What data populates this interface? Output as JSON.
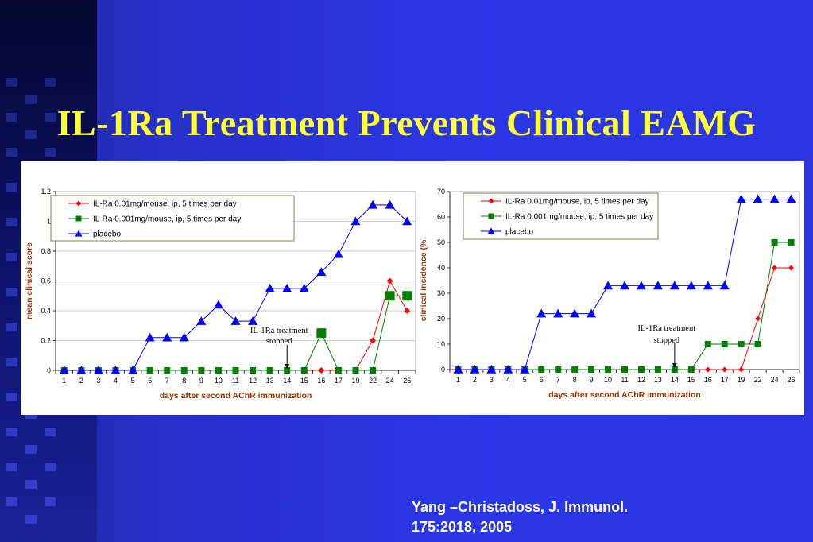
{
  "slide": {
    "title": "IL-1Ra Treatment Prevents Clinical EAMG",
    "citation_line1": "Yang –Christadoss, J. Immunol.",
    "citation_line2": "175:2018, 2005"
  },
  "colors": {
    "series_red": "#ff0000",
    "series_green": "#008000",
    "series_blue": "#0000ff",
    "axis_label": "#993300",
    "title": "#ffff33"
  },
  "chart_data": [
    {
      "type": "line",
      "xlabel": "days after second AChR immunization",
      "ylabel": "mean clinical score",
      "ylim": [
        0,
        1.2
      ],
      "yticks": [
        "0",
        "0.2",
        "0.4",
        "0.6",
        "0.8",
        "1",
        "1.2"
      ],
      "categories": [
        "1",
        "2",
        "3",
        "4",
        "5",
        "6",
        "7",
        "8",
        "9",
        "10",
        "11",
        "12",
        "13",
        "14",
        "15",
        "16",
        "17",
        "19",
        "22",
        "24",
        "26"
      ],
      "grid": true,
      "legend_position": "top-left",
      "annotation": {
        "line1": "IL-1Ra treatment",
        "line2": "stopped",
        "at_category": "14"
      },
      "series": [
        {
          "name": "IL-Ra 0.01mg/mouse, ip, 5 times per day",
          "marker": "diamond",
          "values": [
            0,
            0,
            0,
            0,
            0,
            0,
            0,
            0,
            0,
            0,
            0,
            0,
            0,
            0,
            0,
            0,
            0,
            0,
            0.2,
            0.6,
            0.4
          ]
        },
        {
          "name": "IL-Ra 0.001mg/mouse, ip, 5 times per day",
          "marker": "square",
          "values": [
            0,
            0,
            0,
            0,
            0,
            0,
            0,
            0,
            0,
            0,
            0,
            0,
            0,
            0,
            0,
            0.25,
            0,
            0,
            0,
            0.5,
            0.5
          ]
        },
        {
          "name": "placebo",
          "marker": "triangle",
          "values": [
            0,
            0,
            0,
            0,
            0,
            0.22,
            0.22,
            0.22,
            0.33,
            0.44,
            0.33,
            0.33,
            0.55,
            0.55,
            0.55,
            0.66,
            0.78,
            1.0,
            1.11,
            1.11,
            1.0
          ]
        }
      ]
    },
    {
      "type": "line",
      "xlabel": "days after second AChR immunization",
      "ylabel": "clinical incidence (%",
      "ylim": [
        0,
        70
      ],
      "yticks": [
        "0",
        "10",
        "20",
        "30",
        "40",
        "50",
        "60",
        "70"
      ],
      "categories": [
        "1",
        "2",
        "3",
        "4",
        "5",
        "6",
        "7",
        "8",
        "9",
        "10",
        "11",
        "12",
        "13",
        "14",
        "15",
        "16",
        "17",
        "19",
        "22",
        "24",
        "26"
      ],
      "grid": false,
      "legend_position": "top-left",
      "annotation": {
        "line1": "IL-1Ra treatment",
        "line2": "stopped",
        "at_category": "14"
      },
      "series": [
        {
          "name": "IL-Ra 0.01mg/mouse, ip, 5 times per day",
          "marker": "diamond",
          "values": [
            0,
            0,
            0,
            0,
            0,
            0,
            0,
            0,
            0,
            0,
            0,
            0,
            0,
            0,
            0,
            0,
            0,
            0,
            20,
            40,
            40
          ]
        },
        {
          "name": "IL-Ra 0.001mg/mouse, ip, 5 times per day",
          "marker": "square",
          "values": [
            0,
            0,
            0,
            0,
            0,
            0,
            0,
            0,
            0,
            0,
            0,
            0,
            0,
            0,
            0,
            10,
            10,
            10,
            10,
            50,
            50
          ]
        },
        {
          "name": "placebo",
          "marker": "triangle",
          "values": [
            0,
            0,
            0,
            0,
            0,
            22,
            22,
            22,
            22,
            33,
            33,
            33,
            33,
            33,
            33,
            33,
            33,
            67,
            67,
            67,
            67
          ]
        }
      ]
    }
  ]
}
